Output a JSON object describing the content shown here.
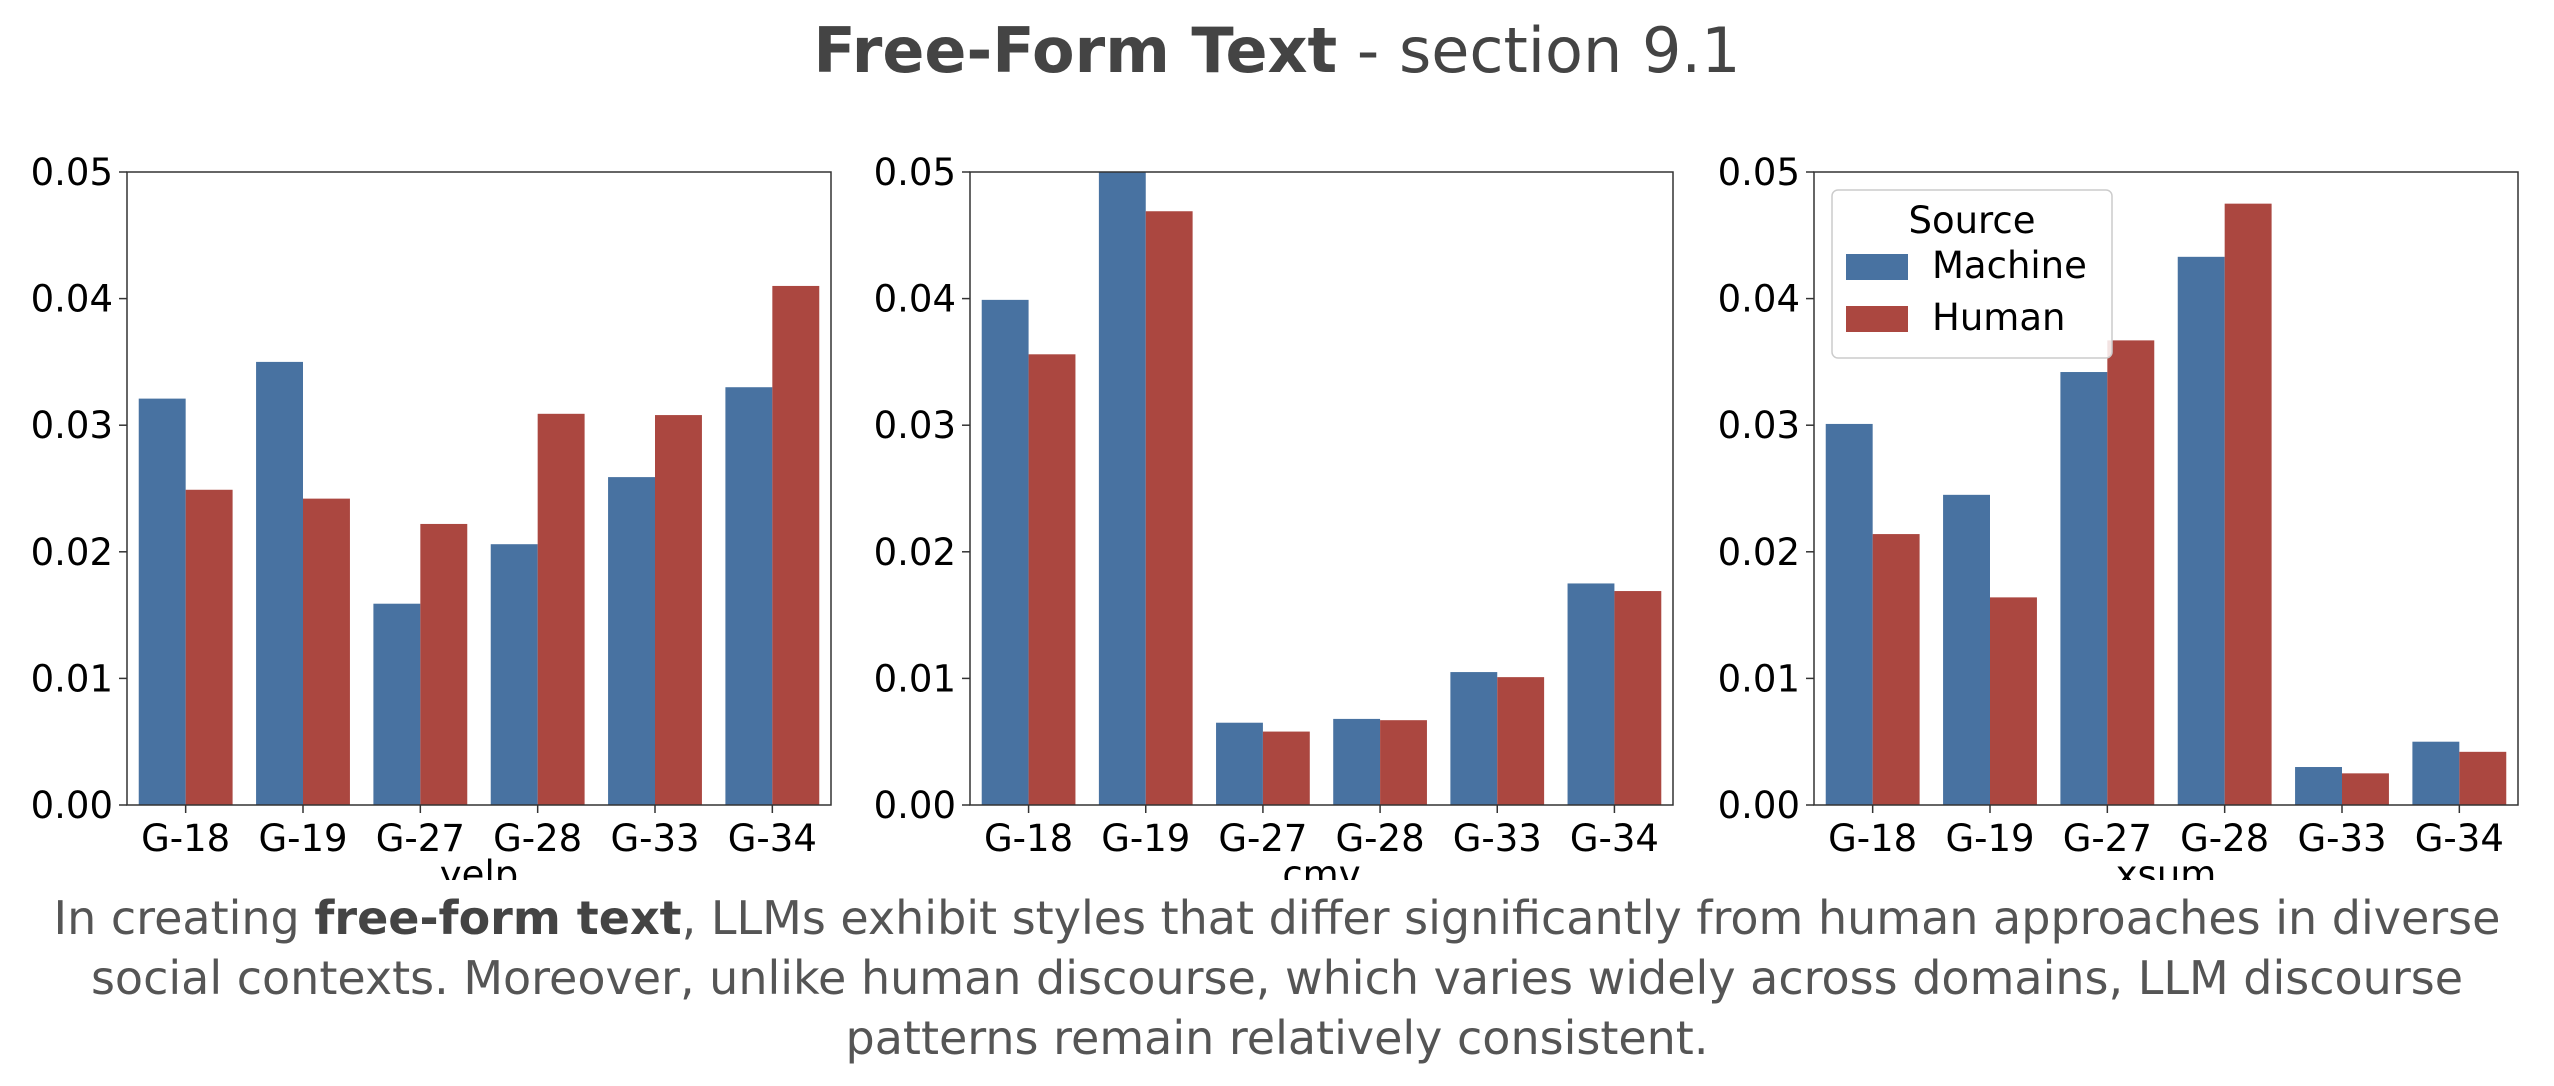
{
  "header": {
    "title_bold": "Free-Form Text",
    "title_rest": " - section 9.1"
  },
  "caption": {
    "part1": "In creating ",
    "bold": "free-form text",
    "part2": ", LLMs exhibit styles that differ significantly from human approaches in diverse social contexts. Moreover, unlike human discourse, which varies widely across domains, LLM discourse patterns remain relatively consistent."
  },
  "colors": {
    "machine": "#4872a1",
    "human": "#ab4740",
    "axis": "#333333"
  },
  "legend": {
    "title": "Source",
    "placement": "upper-left of third panel"
  },
  "chart_data": [
    {
      "type": "bar",
      "xlabel": "yelp",
      "categories": [
        "G-18",
        "G-19",
        "G-27",
        "G-28",
        "G-33",
        "G-34"
      ],
      "ylim": [
        0,
        0.05
      ],
      "yticks": [
        "0.00",
        "0.01",
        "0.02",
        "0.03",
        "0.04",
        "0.05"
      ],
      "series": [
        {
          "name": "Machine",
          "values": [
            0.0321,
            0.035,
            0.0159,
            0.0206,
            0.0259,
            0.033
          ]
        },
        {
          "name": "Human",
          "values": [
            0.0249,
            0.0242,
            0.0222,
            0.0309,
            0.0308,
            0.041
          ]
        }
      ]
    },
    {
      "type": "bar",
      "xlabel": "cmv",
      "categories": [
        "G-18",
        "G-19",
        "G-27",
        "G-28",
        "G-33",
        "G-34"
      ],
      "ylim": [
        0,
        0.05
      ],
      "yticks": [
        "0.00",
        "0.01",
        "0.02",
        "0.03",
        "0.04",
        "0.05"
      ],
      "series": [
        {
          "name": "Machine",
          "values": [
            0.0399,
            0.05,
            0.0065,
            0.0068,
            0.0105,
            0.0175
          ]
        },
        {
          "name": "Human",
          "values": [
            0.0356,
            0.0469,
            0.0058,
            0.0067,
            0.0101,
            0.0169
          ]
        }
      ]
    },
    {
      "type": "bar",
      "xlabel": "xsum",
      "categories": [
        "G-18",
        "G-19",
        "G-27",
        "G-28",
        "G-33",
        "G-34"
      ],
      "ylim": [
        0,
        0.05
      ],
      "yticks": [
        "0.00",
        "0.01",
        "0.02",
        "0.03",
        "0.04",
        "0.05"
      ],
      "series": [
        {
          "name": "Machine",
          "values": [
            0.0301,
            0.0245,
            0.0342,
            0.0433,
            0.003,
            0.005
          ]
        },
        {
          "name": "Human",
          "values": [
            0.0214,
            0.0164,
            0.0367,
            0.0475,
            0.0025,
            0.0042
          ]
        }
      ]
    }
  ]
}
